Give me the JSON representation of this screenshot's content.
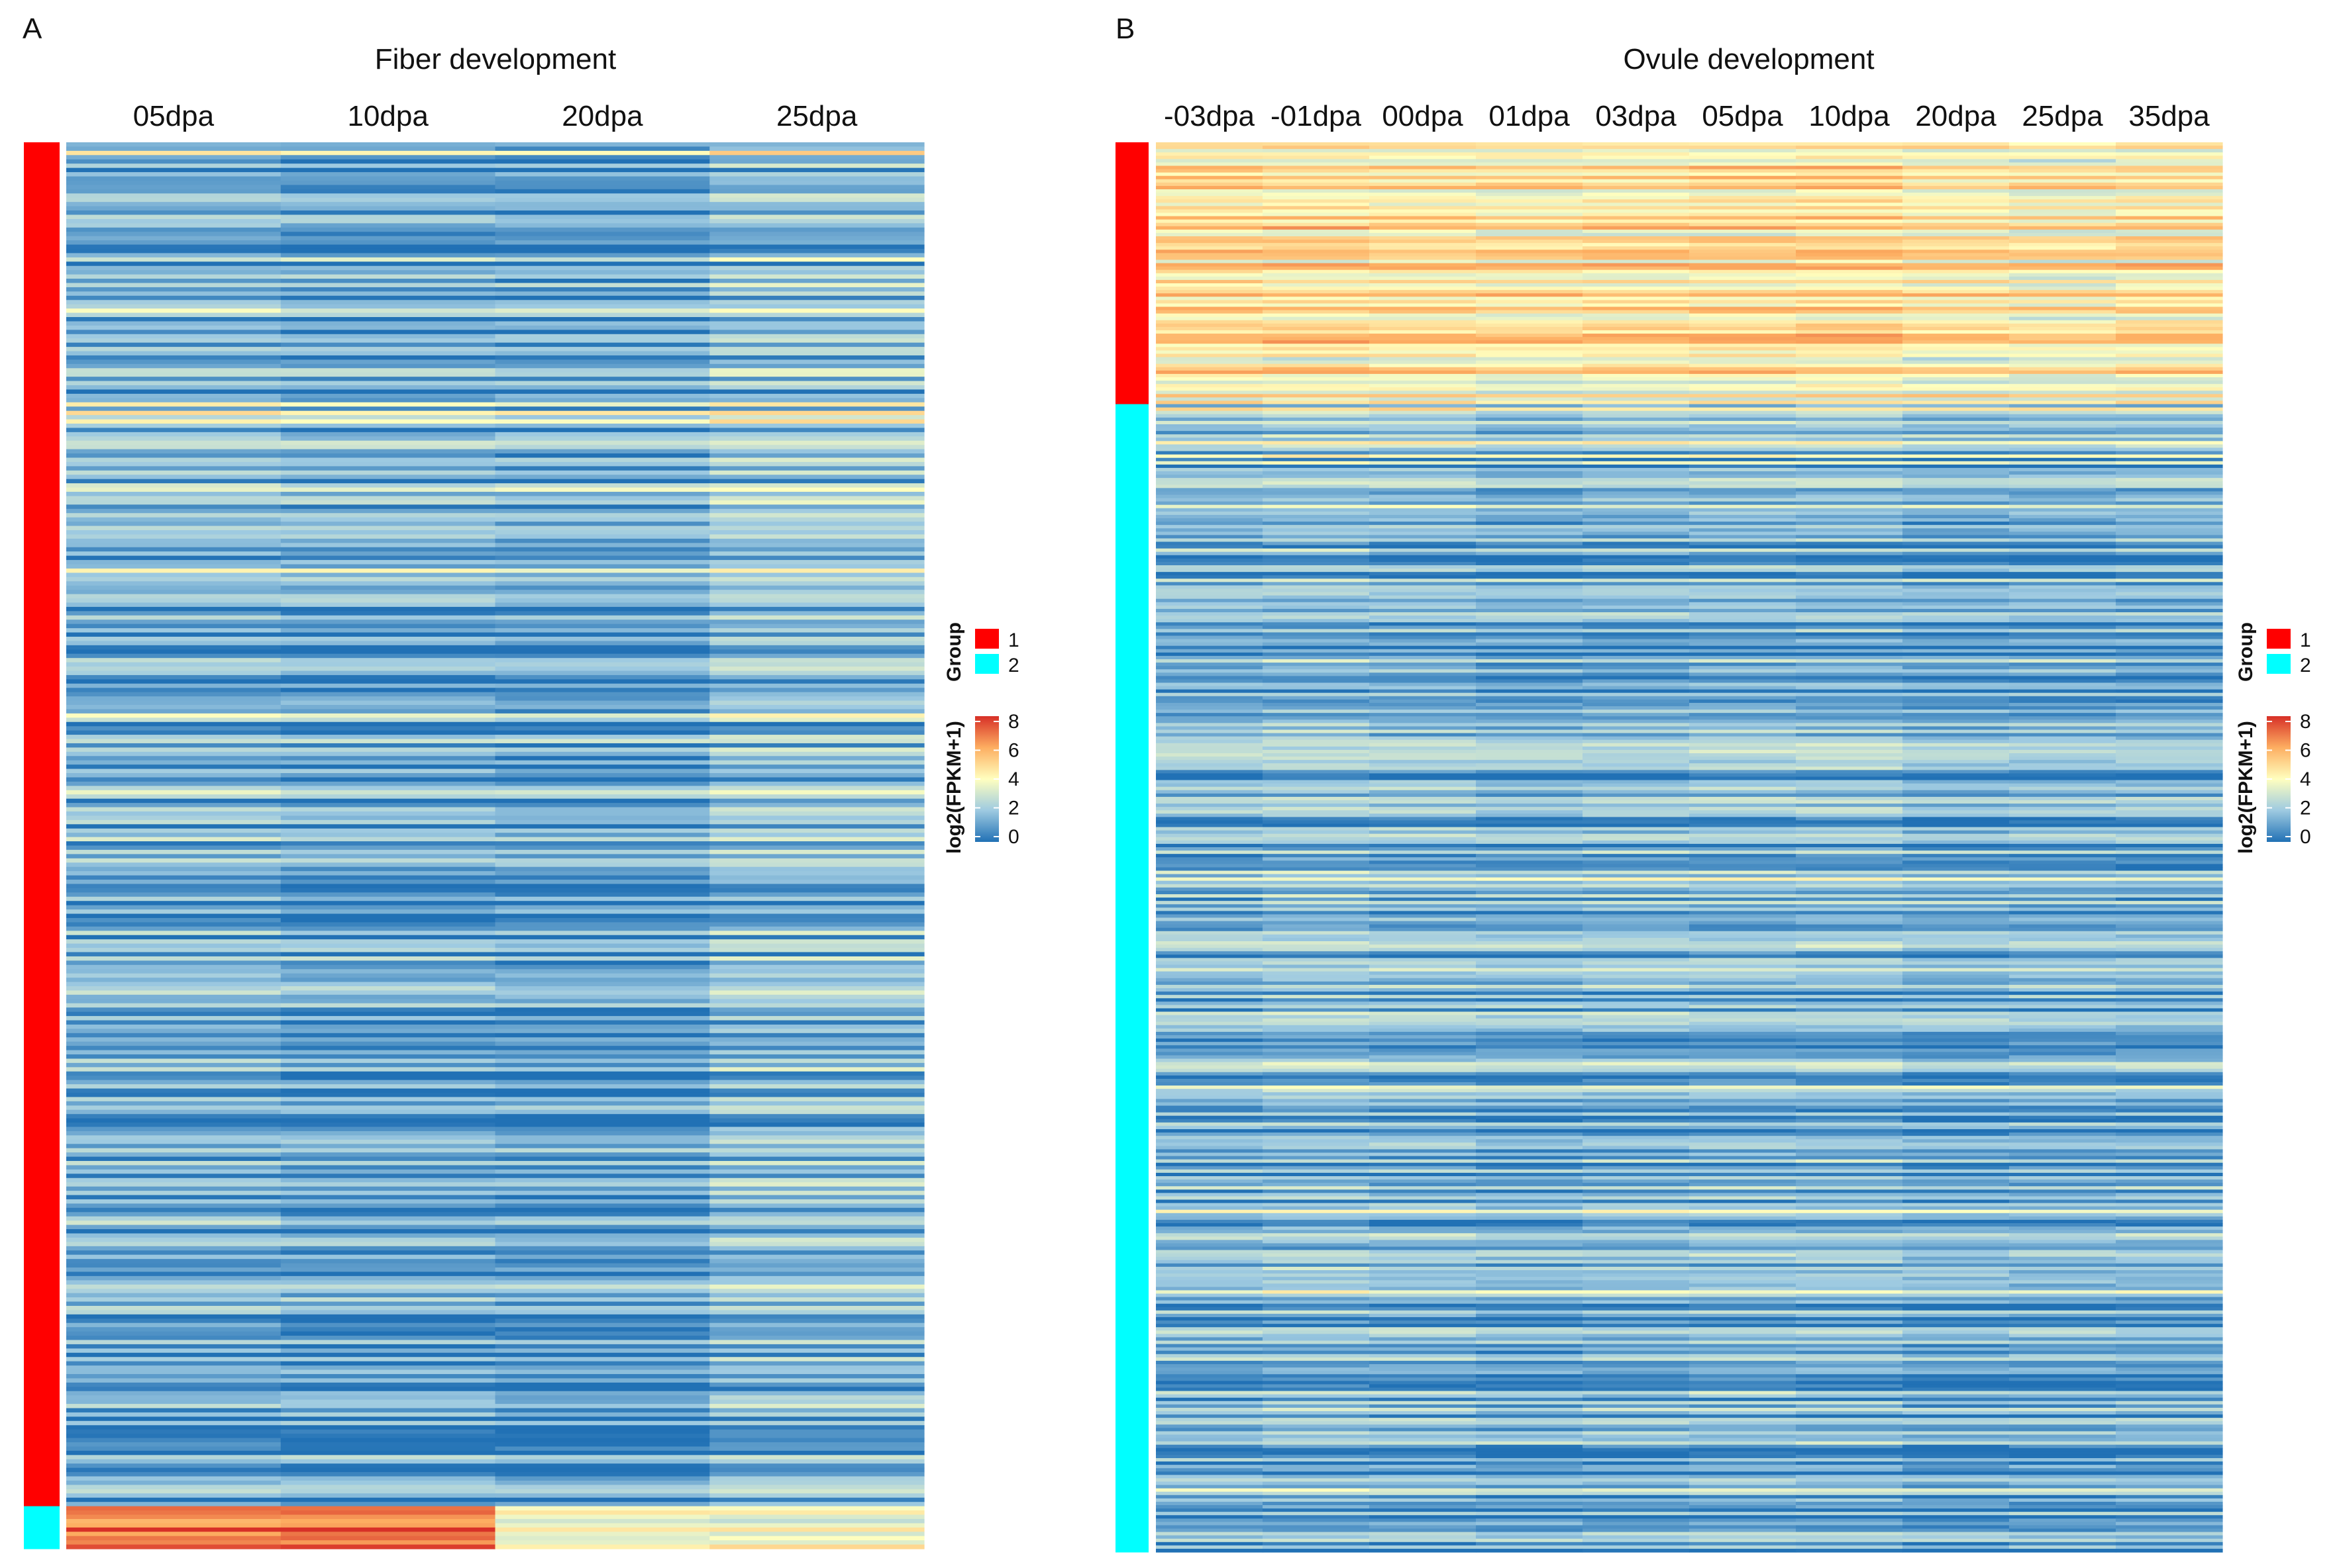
{
  "chart_data": [
    {
      "type": "heatmap",
      "panel_label": "A",
      "title": "Fiber development",
      "columns": [
        "05dpa",
        "10dpa",
        "20dpa",
        "25dpa"
      ],
      "row_count": 330,
      "row_groups": [
        {
          "group": "1",
          "rows": 320
        },
        {
          "group": "2",
          "rows": 10
        }
      ],
      "mean_level_by_group": {
        "1": [
          1.2,
          1.0,
          0.9,
          1.6
        ],
        "2": [
          6.5,
          6.8,
          3.5,
          3.7
        ]
      },
      "value_range": [
        0,
        8
      ],
      "legend": {
        "group_title": "Group",
        "group_items": [
          {
            "label": "1",
            "color": "#ff0000"
          },
          {
            "label": "2",
            "color": "#00ffff"
          }
        ],
        "color_title": "log2(FPKM+1)",
        "color_ticks": [
          "8",
          "6",
          "4",
          "2",
          "0"
        ]
      }
    },
    {
      "type": "heatmap",
      "panel_label": "B",
      "title": "Ovule development",
      "columns": [
        "-03dpa",
        "-01dpa",
        "00dpa",
        "01dpa",
        "03dpa",
        "05dpa",
        "10dpa",
        "20dpa",
        "25dpa",
        "35dpa"
      ],
      "row_count": 420,
      "row_groups": [
        {
          "group": "1",
          "rows": 78
        },
        {
          "group": "2",
          "rows": 342
        }
      ],
      "mean_level_by_group": {
        "1": [
          4.6,
          4.5,
          4.4,
          4.3,
          4.4,
          4.5,
          4.6,
          4.2,
          4.1,
          4.4
        ],
        "2": [
          1.4,
          1.6,
          1.5,
          1.3,
          1.4,
          1.5,
          1.5,
          1.2,
          1.3,
          1.3
        ]
      },
      "value_range": [
        0,
        8
      ],
      "legend": {
        "group_title": "Group",
        "group_items": [
          {
            "label": "1",
            "color": "#ff0000"
          },
          {
            "label": "2",
            "color": "#00ffff"
          }
        ],
        "color_title": "log2(FPKM+1)",
        "color_ticks": [
          "8",
          "6",
          "4",
          "2",
          "0"
        ]
      }
    }
  ],
  "palette": {
    "low": "#2171b5",
    "mid_low": "#9ecae1",
    "mid": "#ffffbf",
    "mid_high": "#fdae61",
    "high": "#d73027"
  }
}
